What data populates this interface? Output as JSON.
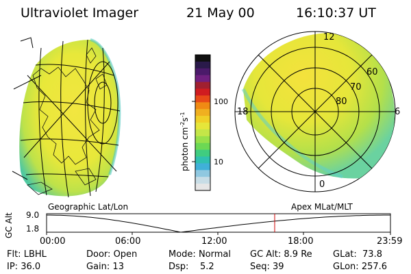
{
  "header": {
    "title": "Ultraviolet Imager",
    "date": "21 May 00",
    "time": "16:10:37 UT"
  },
  "colorbar": {
    "label": "photon cm",
    "label_sup1": "-2",
    "label_mid": "s",
    "label_sup2": "-1",
    "ticks": [
      "100",
      "10"
    ],
    "colors": [
      "#101010",
      "#2a1a4a",
      "#4b1a6a",
      "#702080",
      "#a02030",
      "#d01c20",
      "#e84a18",
      "#f08a14",
      "#f0b020",
      "#f0d028",
      "#e6e63a",
      "#c4e648",
      "#98e04a",
      "#6cd854",
      "#40cc80",
      "#30c0b0",
      "#40b0d8",
      "#90c8e0",
      "#c8dde6",
      "#e6e6e6"
    ]
  },
  "left_map": {
    "projection_label": "Geographic Lat/Lon"
  },
  "right_map": {
    "projection_label": "Apex MLat/MLT",
    "mlt_labels": {
      "top": "12",
      "left": "18",
      "right": "6",
      "bottom": "0"
    },
    "lat_labels": [
      "60",
      "70",
      "80"
    ]
  },
  "altitude_plot": {
    "ylabel": "GC Alt",
    "yticks": [
      "9.0",
      "1.8"
    ],
    "xticks": [
      "00:00",
      "06:00",
      "12:00",
      "18:00",
      "23:59"
    ],
    "marker_color": "#cc0000",
    "curve_color": "#000000"
  },
  "status": {
    "row1": [
      {
        "key": "Flt:",
        "value": "LBHL"
      },
      {
        "key": "Door:",
        "value": "Open"
      },
      {
        "key": "Mode:",
        "value": "Normal"
      },
      {
        "key": "GC Alt:",
        "value": "8.9 Re"
      },
      {
        "key": "GLat:",
        "value": "73.8"
      }
    ],
    "row2": [
      {
        "key": "IP:",
        "value": "36.0"
      },
      {
        "key": "Gain:",
        "value": "13"
      },
      {
        "key": "Dsp:",
        "value": "5.2"
      },
      {
        "key": "Seq:",
        "value": "39"
      },
      {
        "key": "GLon:",
        "value": "257.6"
      }
    ]
  }
}
